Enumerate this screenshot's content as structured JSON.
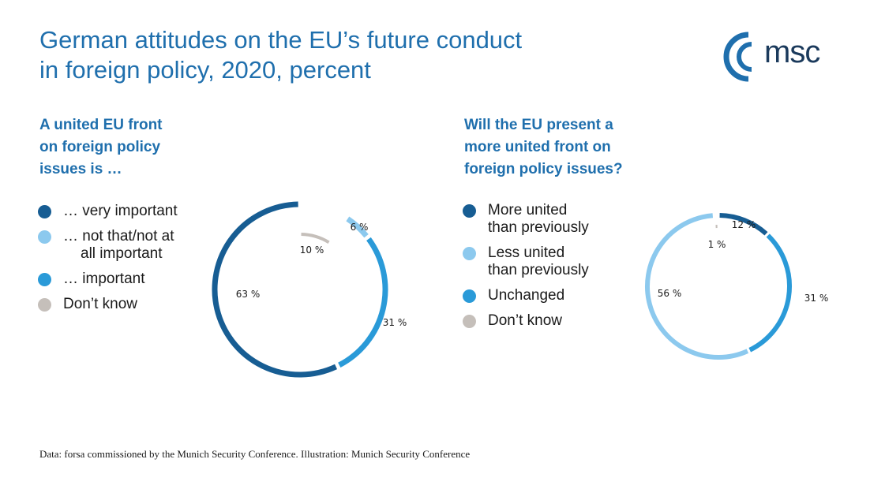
{
  "title": [
    "German attitudes on the EU’s future conduct",
    "in foreign policy, 2020, percent"
  ],
  "logo": {
    "text": "msc",
    "color": "#1b3a5c",
    "accent": "#1f6fad"
  },
  "source": "Data: forsa commissioned by the Munich Security Conference. Illustration: Munich Security Conference",
  "colors": {
    "dark_blue": "#175d93",
    "light_blue": "#8cc9ee",
    "mid_blue": "#2a9ad8",
    "grey": "#c5bfba"
  },
  "chart_data": [
    {
      "type": "pie",
      "subtitle": [
        "A united EU front",
        "on foreign policy",
        "issues is …"
      ],
      "legend": [
        {
          "label": [
            "… very important"
          ],
          "color": "#175d93"
        },
        {
          "label": [
            "… not that/not at",
            "all important"
          ],
          "color": "#8cc9ee"
        },
        {
          "label": [
            "… important"
          ],
          "color": "#2a9ad8"
        },
        {
          "label": [
            "Don’t know"
          ],
          "color": "#c5bfba"
        }
      ],
      "slices": [
        {
          "label": "Don’t know",
          "value": 10,
          "value_label": "10 %",
          "color": "#c5bfba"
        },
        {
          "label": "… not that/not at all important",
          "value": 6,
          "value_label": "6 %",
          "color": "#8cc9ee"
        },
        {
          "label": "… important",
          "value": 31,
          "value_label": "31 %",
          "color": "#2a9ad8"
        },
        {
          "label": "… very important",
          "value": 63,
          "value_label": "63 %",
          "color": "#175d93"
        }
      ]
    },
    {
      "type": "pie",
      "subtitle": [
        "Will the EU present a",
        "more united front on",
        "foreign policy issues?"
      ],
      "legend": [
        {
          "label": [
            "More united",
            "than previously"
          ],
          "color": "#175d93"
        },
        {
          "label": [
            "Less united",
            "than previously"
          ],
          "color": "#8cc9ee"
        },
        {
          "label": [
            "Unchanged"
          ],
          "color": "#2a9ad8"
        },
        {
          "label": [
            "Don’t know"
          ],
          "color": "#c5bfba"
        }
      ],
      "slices": [
        {
          "label": "More united than previously",
          "value": 12,
          "value_label": "12 %",
          "color": "#175d93"
        },
        {
          "label": "Unchanged",
          "value": 31,
          "value_label": "31 %",
          "color": "#2a9ad8"
        },
        {
          "label": "Less united than previously",
          "value": 56,
          "value_label": "56 %",
          "color": "#8cc9ee"
        },
        {
          "label": "Don’t know",
          "value": 1,
          "value_label": "1 %",
          "color": "#c5bfba"
        }
      ]
    }
  ]
}
